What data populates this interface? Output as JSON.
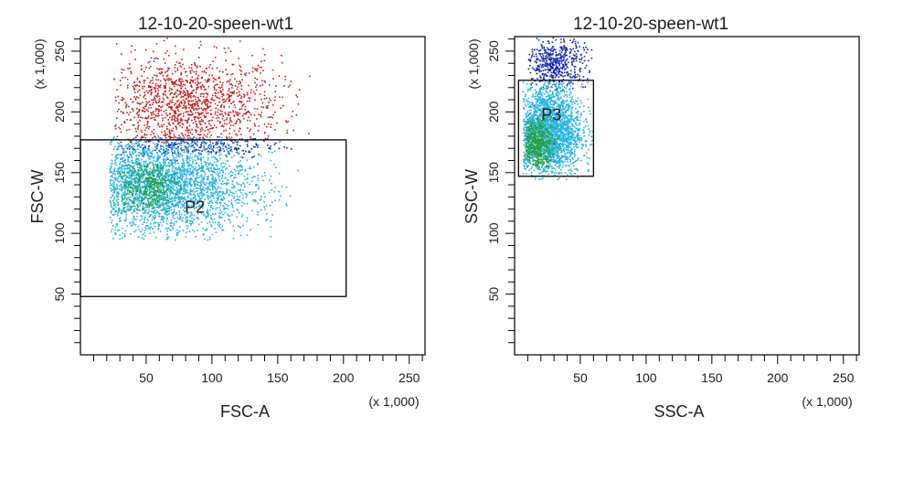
{
  "chart_data": [
    {
      "type": "scatter",
      "title": "12-10-20-speen-wt1",
      "xlabel": "FSC-A",
      "ylabel": "FSC-W",
      "x_multiplier": "(x 1,000)",
      "y_multiplier": "(x 1,000)",
      "xlim": [
        0,
        262
      ],
      "ylim": [
        0,
        262
      ],
      "x_ticks": [
        50,
        100,
        150,
        200,
        250
      ],
      "y_ticks": [
        50,
        100,
        150,
        200,
        250
      ],
      "grid": false,
      "populations": [
        {
          "color": "#c81e1e",
          "count": 1300,
          "x_range": [
            25,
            175
          ],
          "y_range": [
            175,
            262
          ],
          "center": [
            80,
            205
          ],
          "description_note": ""
        },
        {
          "color": "#1428b4",
          "count": 250,
          "x_range": [
            30,
            170
          ],
          "y_range": [
            160,
            180
          ],
          "center": [
            85,
            172
          ]
        },
        {
          "color": "#28b4e6",
          "count": 2800,
          "x_range": [
            22,
            170
          ],
          "y_range": [
            95,
            180
          ],
          "center": [
            60,
            140
          ]
        },
        {
          "color": "#23a036",
          "count": 350,
          "x_range": [
            28,
            80
          ],
          "y_range": [
            115,
            160
          ],
          "center": [
            50,
            140
          ]
        }
      ],
      "gates": [
        {
          "label": "P2",
          "x_range": [
            0,
            202
          ],
          "y_range": [
            48,
            177
          ],
          "label_at": [
            87,
            117
          ]
        }
      ]
    },
    {
      "type": "scatter",
      "title": "12-10-20-speen-wt1",
      "xlabel": "SSC-A",
      "ylabel": "SSC-W",
      "x_multiplier": "(x 1,000)",
      "y_multiplier": "(x 1,000)",
      "xlim": [
        0,
        262
      ],
      "ylim": [
        0,
        262
      ],
      "x_ticks": [
        50,
        100,
        150,
        200,
        250
      ],
      "y_ticks": [
        50,
        100,
        150,
        200,
        250
      ],
      "grid": false,
      "populations": [
        {
          "color": "#1428b4",
          "count": 500,
          "x_range": [
            10,
            60
          ],
          "y_range": [
            218,
            262
          ],
          "center": [
            30,
            240
          ]
        },
        {
          "color": "#28b4e6",
          "count": 2300,
          "x_range": [
            6,
            60
          ],
          "y_range": [
            145,
            225
          ],
          "center": [
            25,
            185
          ]
        },
        {
          "color": "#23a036",
          "count": 450,
          "x_range": [
            8,
            35
          ],
          "y_range": [
            155,
            200
          ],
          "center": [
            17,
            174
          ]
        }
      ],
      "gates": [
        {
          "label": "P3",
          "x_range": [
            3,
            60
          ],
          "y_range": [
            147,
            226
          ],
          "label_at": [
            28,
            193
          ]
        }
      ]
    }
  ]
}
